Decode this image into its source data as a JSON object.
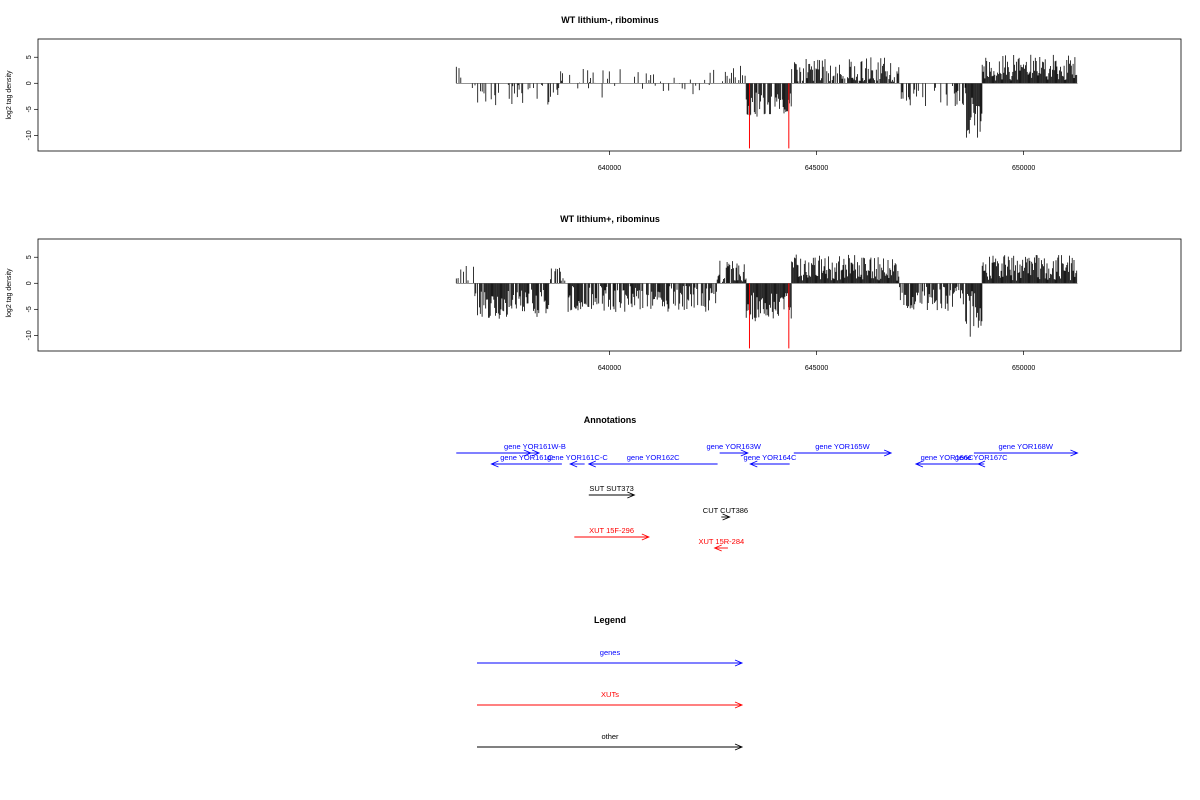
{
  "colors": {
    "gene": "#0000ff",
    "xut": "#ff0000",
    "other": "#000000",
    "marker": "#ff0000",
    "bar": "#000000"
  },
  "chart_data": [
    {
      "type": "bar",
      "title": "WT lithium-, ribominus",
      "ylabel": "log2 tag density",
      "xlabel": "",
      "xlim": [
        626200,
        653800
      ],
      "ylim": [
        -13,
        8.5
      ],
      "xticks": [
        640000,
        645000,
        650000
      ],
      "xtick_labels": [
        "640000",
        "645000",
        "650000"
      ],
      "yticks": [
        5,
        0,
        -5,
        -10
      ],
      "ytick_labels": [
        "5",
        "0",
        "-5",
        "-10"
      ],
      "markers": [
        {
          "x": 643380,
          "y": -12.5
        },
        {
          "x": 644330,
          "y": -12.5
        }
      ],
      "regions": [
        {
          "start": 636300,
          "end": 636600,
          "mean": 1.5,
          "amp": 2.0,
          "density": 0.25
        },
        {
          "start": 636600,
          "end": 638800,
          "mean": -2.0,
          "amp": 2.2,
          "density": 0.35
        },
        {
          "start": 638800,
          "end": 642600,
          "mean": 0.0,
          "amp": 2.8,
          "density": 0.2
        },
        {
          "start": 642600,
          "end": 643300,
          "mean": 1.5,
          "amp": 2.0,
          "density": 0.3
        },
        {
          "start": 643300,
          "end": 644400,
          "mean": -4.0,
          "amp": 2.5,
          "density": 0.9
        },
        {
          "start": 644400,
          "end": 647000,
          "mean": 2.5,
          "amp": 2.5,
          "density": 0.8
        },
        {
          "start": 647000,
          "end": 648600,
          "mean": -2.5,
          "amp": 2.0,
          "density": 0.4
        },
        {
          "start": 648600,
          "end": 649000,
          "mean": -6.0,
          "amp": 4.5,
          "density": 1.0
        },
        {
          "start": 649000,
          "end": 651300,
          "mean": 3.0,
          "amp": 2.5,
          "density": 1.0
        }
      ]
    },
    {
      "type": "bar",
      "title": "WT lithium+, ribominus",
      "ylabel": "log2 tag density",
      "xlabel": "",
      "xlim": [
        626200,
        653800
      ],
      "ylim": [
        -13,
        8.5
      ],
      "xticks": [
        640000,
        645000,
        650000
      ],
      "xtick_labels": [
        "640000",
        "645000",
        "650000"
      ],
      "yticks": [
        5,
        0,
        -5,
        -10
      ],
      "ytick_labels": [
        "5",
        "0",
        "-5",
        "-10"
      ],
      "markers": [
        {
          "x": 643380,
          "y": -12.5
        },
        {
          "x": 644330,
          "y": -12.5
        }
      ],
      "regions": [
        {
          "start": 636300,
          "end": 636750,
          "mean": 1.5,
          "amp": 2.0,
          "density": 0.5
        },
        {
          "start": 636750,
          "end": 638550,
          "mean": -4.0,
          "amp": 2.8,
          "density": 0.9
        },
        {
          "start": 638550,
          "end": 639000,
          "mean": 1.0,
          "amp": 2.0,
          "density": 0.4
        },
        {
          "start": 639000,
          "end": 642600,
          "mean": -3.0,
          "amp": 2.5,
          "density": 0.8
        },
        {
          "start": 642600,
          "end": 643300,
          "mean": 2.0,
          "amp": 2.5,
          "density": 0.8
        },
        {
          "start": 643300,
          "end": 644400,
          "mean": -4.5,
          "amp": 2.8,
          "density": 1.0
        },
        {
          "start": 644400,
          "end": 647000,
          "mean": 3.0,
          "amp": 2.5,
          "density": 1.0
        },
        {
          "start": 647000,
          "end": 648600,
          "mean": -3.0,
          "amp": 2.5,
          "density": 0.8
        },
        {
          "start": 648600,
          "end": 649000,
          "mean": -6.0,
          "amp": 4.5,
          "density": 1.0
        },
        {
          "start": 649000,
          "end": 651300,
          "mean": 3.0,
          "amp": 2.5,
          "density": 1.0
        }
      ]
    }
  ],
  "annotations": {
    "title": "Annotations",
    "xlim": [
      626200,
      653800
    ],
    "items": [
      {
        "label": "",
        "start": 636300,
        "end": 638100,
        "strand": "+",
        "kind": "gene",
        "row": 0
      },
      {
        "label": "gene YOR161W-B",
        "start": 638100,
        "end": 638300,
        "strand": "+",
        "kind": "gene",
        "row": 0
      },
      {
        "label": "gene YOR163W",
        "start": 642660,
        "end": 643340,
        "strand": "+",
        "kind": "gene",
        "row": 0
      },
      {
        "label": "gene YOR165W",
        "start": 644450,
        "end": 646800,
        "strand": "+",
        "kind": "gene",
        "row": 0
      },
      {
        "label": "gene YOR168W",
        "start": 648800,
        "end": 651300,
        "strand": "+",
        "kind": "gene",
        "row": 0
      },
      {
        "label": "gene YOR161C",
        "start": 637150,
        "end": 638850,
        "strand": "-",
        "kind": "gene",
        "row": 1
      },
      {
        "label": "gene YOR161C-C",
        "start": 639050,
        "end": 639400,
        "strand": "-",
        "kind": "gene",
        "row": 1
      },
      {
        "label": "gene YOR162C",
        "start": 639500,
        "end": 642610,
        "strand": "-",
        "kind": "gene",
        "row": 1
      },
      {
        "label": "gene YOR164C",
        "start": 643400,
        "end": 644350,
        "strand": "-",
        "kind": "gene",
        "row": 1
      },
      {
        "label": "gene YOR166C",
        "start": 647400,
        "end": 648900,
        "strand": "-",
        "kind": "gene",
        "row": 1
      },
      {
        "label": "gene YOR167C",
        "start": 648900,
        "end": 649050,
        "strand": "-",
        "kind": "gene",
        "row": 1
      },
      {
        "label": "SUT SUT373",
        "start": 639500,
        "end": 640600,
        "strand": "+",
        "kind": "other",
        "row": 2
      },
      {
        "label": "CUT CUT386",
        "start": 642700,
        "end": 642900,
        "strand": "+",
        "kind": "other",
        "row": 3
      },
      {
        "label": "XUT 15F-296",
        "start": 639150,
        "end": 640950,
        "strand": "+",
        "kind": "xut",
        "row": 4
      },
      {
        "label": "XUT 15R-284",
        "start": 642540,
        "end": 642860,
        "strand": "-",
        "kind": "xut",
        "row": 5
      }
    ]
  },
  "legend": {
    "title": "Legend",
    "items": [
      {
        "label": "genes",
        "kind": "gene"
      },
      {
        "label": "XUTs",
        "kind": "xut"
      },
      {
        "label": "other",
        "kind": "other"
      }
    ]
  }
}
